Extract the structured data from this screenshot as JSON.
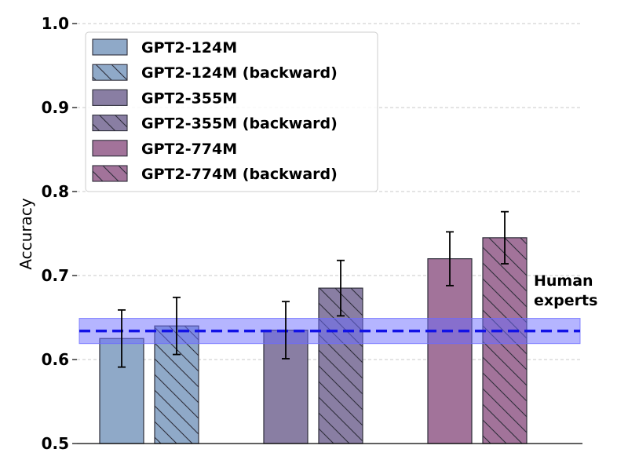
{
  "chart_data": {
    "type": "bar",
    "ylabel": "Accuracy",
    "ylim": [
      0.5,
      1.0
    ],
    "yticks": [
      "0.5",
      "0.6",
      "0.7",
      "0.8",
      "0.9",
      "1.0"
    ],
    "grid": "horizontal dashed",
    "legend_position": "top-left",
    "series": [
      {
        "name": "GPT2-124M",
        "value": 0.625,
        "error": 0.034,
        "color": "#8fa9c8",
        "hatch": false
      },
      {
        "name": "GPT2-124M (backward)",
        "value": 0.64,
        "error": 0.034,
        "color": "#8fa9c8",
        "hatch": true
      },
      {
        "name": "GPT2-355M",
        "value": 0.635,
        "error": 0.034,
        "color": "#897ea3",
        "hatch": false
      },
      {
        "name": "GPT2-355M (backward)",
        "value": 0.685,
        "error": 0.033,
        "color": "#897ea3",
        "hatch": true
      },
      {
        "name": "GPT2-774M",
        "value": 0.72,
        "error": 0.032,
        "color": "#a2739a",
        "hatch": false
      },
      {
        "name": "GPT2-774M (backward)",
        "value": 0.745,
        "error": 0.031,
        "color": "#a2739a",
        "hatch": true
      }
    ],
    "reference_line": {
      "label": "Human experts",
      "label_lines": [
        "Human",
        "experts"
      ],
      "value": 0.634,
      "band": [
        0.619,
        0.649
      ],
      "color": "#1212e6",
      "band_color": "#6b6bff"
    }
  }
}
